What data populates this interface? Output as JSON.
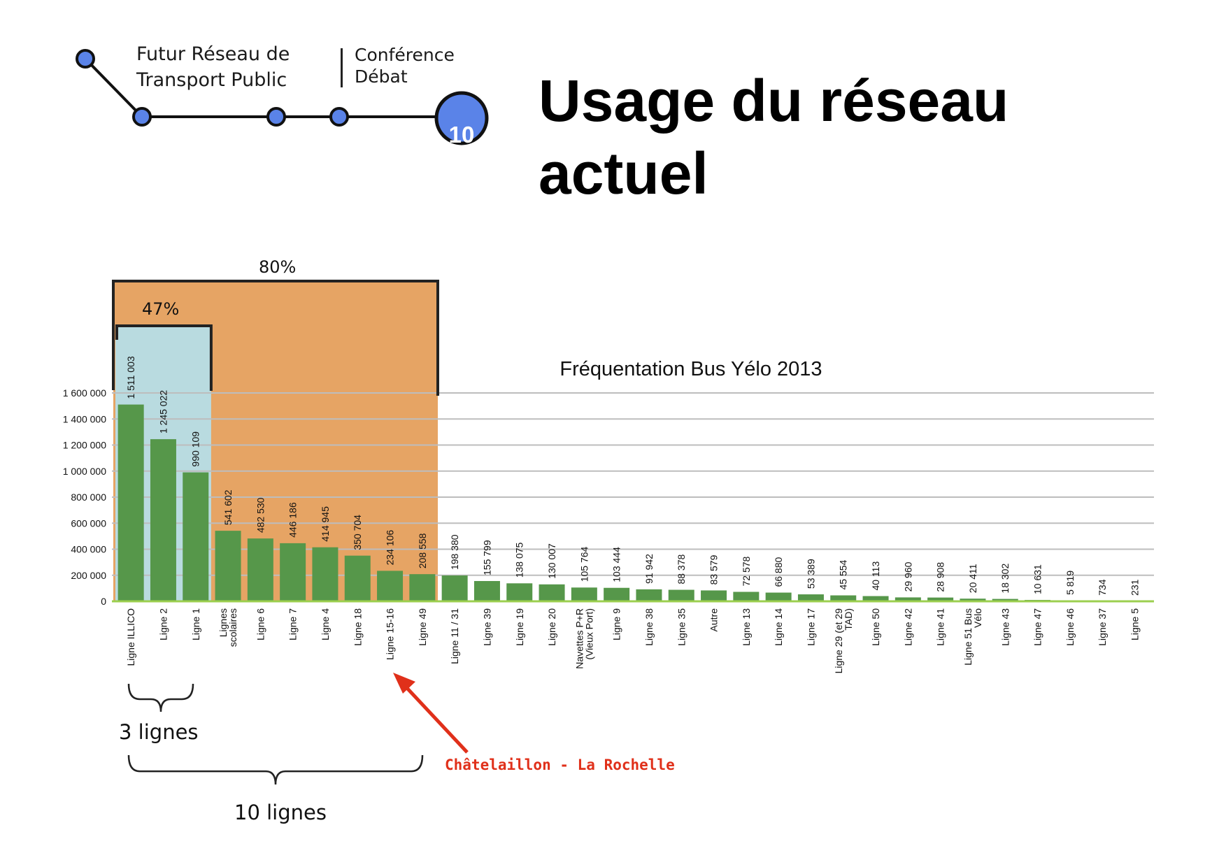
{
  "header": {
    "brand_line1": "Futur Réseau de",
    "brand_line2": "Transport Public",
    "conf_line1": "Conférence",
    "conf_line2": "Débat",
    "badge": "10",
    "title_line1": "Usage du réseau",
    "title_line2": "actuel",
    "accent_color": "#5a83e8"
  },
  "annotations": {
    "pct_80": "80%",
    "pct_47": "47%",
    "group_3": "3 lignes",
    "group_10": "10 lignes",
    "arrow_label": "Châtelaillon - La Rochelle",
    "orange_color": "#e6a464",
    "blue_color": "#b9dbe0",
    "arrow_color": "#e0301a"
  },
  "chart_data": {
    "type": "bar",
    "title": "Fréquentation Bus Yélo 2013",
    "xlabel": "",
    "ylabel": "",
    "ylim": [
      0,
      1600000
    ],
    "yticks": [
      0,
      200000,
      400000,
      600000,
      800000,
      1000000,
      1200000,
      1400000,
      1600000
    ],
    "ytick_labels": [
      "0",
      "200 000",
      "400 000",
      "600 000",
      "800 000",
      "1 000 000",
      "1 200 000",
      "1 400 000",
      "1 600 000"
    ],
    "grid": true,
    "bar_color": "#56974a",
    "categories": [
      "Ligne ILLICO",
      "Ligne 2",
      "Ligne 1",
      "Lignes scolaires",
      "Ligne 6",
      "Ligne 7",
      "Ligne 4",
      "Ligne 18",
      "Ligne 15-16",
      "Ligne 49",
      "Ligne 11 / 31",
      "Ligne 39",
      "Ligne 19",
      "Ligne 20",
      "Navettes P+R (Vieux Port)",
      "Ligne 9",
      "Ligne 38",
      "Ligne 35",
      "Autre",
      "Ligne 13",
      "Ligne 14",
      "Ligne 17",
      "Ligne 29 (et 29 TAD)",
      "Ligne 50",
      "Ligne 42",
      "Ligne 41",
      "Ligne 51 Bus Vélo",
      "Ligne 43",
      "Ligne 47",
      "Ligne 46",
      "Ligne 37",
      "Ligne 5"
    ],
    "values": [
      1511003,
      1245022,
      990109,
      541602,
      482530,
      446186,
      414945,
      350704,
      234106,
      208558,
      198380,
      155799,
      138075,
      130007,
      105764,
      103444,
      91942,
      88378,
      83579,
      72578,
      66880,
      53389,
      45554,
      40113,
      29960,
      28908,
      20411,
      18302,
      10631,
      5819,
      734,
      231
    ],
    "value_labels": [
      "1 511 003",
      "1 245 022",
      "990 109",
      "541 602",
      "482 530",
      "446 186",
      "414 945",
      "350 704",
      "234 106",
      "208 558",
      "198 380",
      "155 799",
      "138 075",
      "130 007",
      "105 764",
      "103 444",
      "91 942",
      "88 378",
      "83 579",
      "72 578",
      "66 880",
      "53 389",
      "45 554",
      "40 113",
      "29 960",
      "28 908",
      "20 411",
      "18 302",
      "10 631",
      "5 819",
      "734",
      "231"
    ]
  }
}
